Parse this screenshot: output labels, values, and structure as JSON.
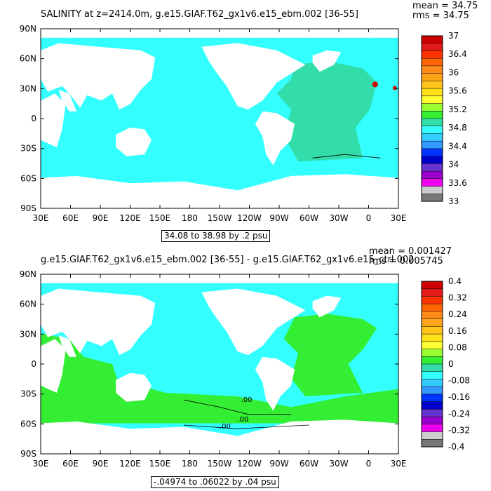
{
  "panels": [
    {
      "title": "SALINITY at z=2414.0m, g.e15.GIAF.T62_gx1v6.e15_ebm.002 [36-55]",
      "stats": {
        "mean": "mean = 34.75",
        "rms": "rms = 34.75"
      },
      "range_text": "34.08 to 38.98 by .2 psu",
      "x_ticks": [
        "30E",
        "60E",
        "90E",
        "120E",
        "150E",
        "180",
        "150W",
        "120W",
        "90W",
        "60W",
        "30W",
        "0",
        "30E"
      ],
      "y_ticks": [
        "90N",
        "60N",
        "30N",
        "0",
        "30S",
        "60S",
        "90S"
      ],
      "colorbar": {
        "labels": [
          "37",
          "36.4",
          "36",
          "35.6",
          "35.2",
          "34.8",
          "34.4",
          "34",
          "33.6",
          "33"
        ],
        "colors": [
          "#cc0000",
          "#e31a1c",
          "#ff3300",
          "#ff6600",
          "#ff8c1a",
          "#ffa319",
          "#ffc31a",
          "#ffe11a",
          "#ffff33",
          "#99ff33",
          "#33ee33",
          "#33ddaa",
          "#33ffff",
          "#33ccff",
          "#3399ff",
          "#0033ff",
          "#0000cc",
          "#6633cc",
          "#9900cc",
          "#ee00ee",
          "#cccccc",
          "#777777"
        ]
      },
      "contour_labels": []
    },
    {
      "title": "g.e15.GIAF.T62_gx1v6.e15_ebm.002 [36-55] - g.e15.GIAF.T62_gx1v6.e15_ctrl.002",
      "stats": {
        "mean": "mean = 0.001427",
        "rms": "rms = 0.005745"
      },
      "range_text": "-.04974 to .06022 by .04 psu",
      "x_ticks": [
        "30E",
        "60E",
        "90E",
        "120E",
        "150E",
        "180",
        "150W",
        "120W",
        "90W",
        "60W",
        "30W",
        "0",
        "30E"
      ],
      "y_ticks": [
        "90N",
        "60N",
        "30N",
        "0",
        "30S",
        "60S",
        "90S"
      ],
      "colorbar": {
        "labels": [
          "0.4",
          "0.32",
          "0.24",
          "0.16",
          "0.08",
          "0",
          "-0.08",
          "-0.16",
          "-0.24",
          "-0.32",
          "-0.4"
        ],
        "colors": [
          "#cc0000",
          "#e31a1c",
          "#ff3300",
          "#ff6600",
          "#ff8c1a",
          "#ffa319",
          "#ffc31a",
          "#ffe11a",
          "#ffff33",
          "#99ff33",
          "#33ee33",
          "#33ddaa",
          "#33ffff",
          "#33ccff",
          "#3399ff",
          "#0033ff",
          "#0000cc",
          "#6633cc",
          "#9900cc",
          "#ee00ee",
          "#cccccc",
          "#777777"
        ]
      },
      "contour_labels": [
        ".00",
        ".00",
        ".00"
      ]
    }
  ],
  "colors": {
    "ocean_fresh": "#33ffff",
    "ocean_salty": "#33ddaa",
    "ocean_diff_pos": "#33ee33",
    "ocean_diff_zero": "#33ddaa",
    "land": "#ffffff"
  }
}
